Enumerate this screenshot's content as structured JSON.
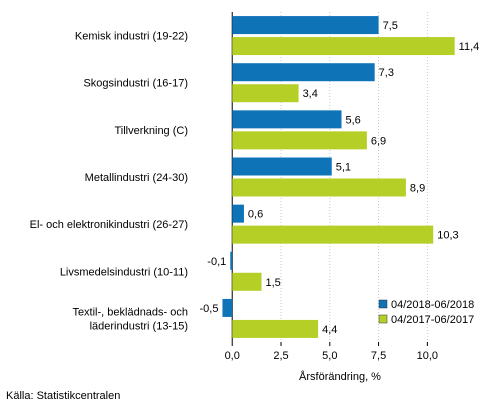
{
  "chart_data": {
    "type": "bar",
    "orientation": "horizontal",
    "categories": [
      "Kemisk industri (19-22)",
      "Skogsindustri (16-17)",
      "Tillverkning (C)",
      "Metallindustri (24-30)",
      "El- och elektronikindustri (26-27)",
      "Livsmedelsindustri (10-11)",
      "Textil-, beklädnads- och\nläderindustri (13-15)"
    ],
    "series": [
      {
        "name": "04/2018-06/2018",
        "color": "#0f73b7",
        "values": [
          7.5,
          7.3,
          5.6,
          5.1,
          0.6,
          -0.1,
          -0.5
        ],
        "labels": [
          "7,5",
          "7,3",
          "5,6",
          "5,1",
          "0,6",
          "-0,1",
          "-0,5"
        ]
      },
      {
        "name": "04/2017-06/2017",
        "color": "#b5cf26",
        "values": [
          11.4,
          3.4,
          6.9,
          8.9,
          10.3,
          1.5,
          4.4
        ],
        "labels": [
          "11,4",
          "3,4",
          "6,9",
          "8,9",
          "10,3",
          "1,5",
          "4,4"
        ]
      }
    ],
    "xlabel": "Årsförändring, %",
    "xlim": [
      -1.6,
      12.8
    ],
    "xticks": [
      0,
      2.5,
      5,
      7.5,
      10
    ],
    "xtick_labels": [
      "0,0",
      "2,5",
      "5,0",
      "7,5",
      "10,0"
    ],
    "legend_position": "bottom-right",
    "grid": false
  },
  "source": "Källa: Statistikcentralen"
}
